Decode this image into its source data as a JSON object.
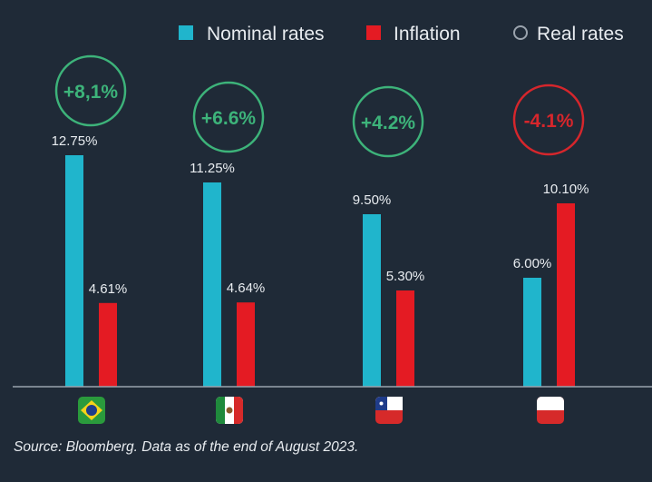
{
  "legend": {
    "nominal": "Nominal rates",
    "inflation": "Inflation",
    "real": "Real rates"
  },
  "colors": {
    "background": "#1f2a37",
    "nominal": "#20b5cc",
    "inflation": "#e41b23",
    "positive": "#3db37a",
    "negative": "#d6262c",
    "axis": "#9aa3ad"
  },
  "chart_data": {
    "type": "bar",
    "categories": [
      "brazil-flag",
      "mexico-flag",
      "chile-flag",
      "poland-flag"
    ],
    "series": [
      {
        "name": "Nominal rates",
        "values": [
          12.75,
          11.25,
          9.5,
          6.0
        ],
        "labels": [
          "12.75%",
          "11.25%",
          "9.50%",
          "6.00%"
        ]
      },
      {
        "name": "Inflation",
        "values": [
          4.61,
          4.64,
          5.3,
          10.1
        ],
        "labels": [
          "4.61%",
          "4.64%",
          "5.30%",
          "10.10%"
        ]
      }
    ],
    "real_rates": {
      "values": [
        8.1,
        6.6,
        4.2,
        -4.1
      ],
      "labels": [
        "+8,1%",
        "+6.6%",
        "+4.2%",
        "-4.1%"
      ]
    },
    "ylim": [
      0,
      17
    ],
    "grid": false,
    "legend_position": "top-right"
  },
  "footer": {
    "source": "Source: Bloomberg. Data as of the end of August 2023."
  }
}
